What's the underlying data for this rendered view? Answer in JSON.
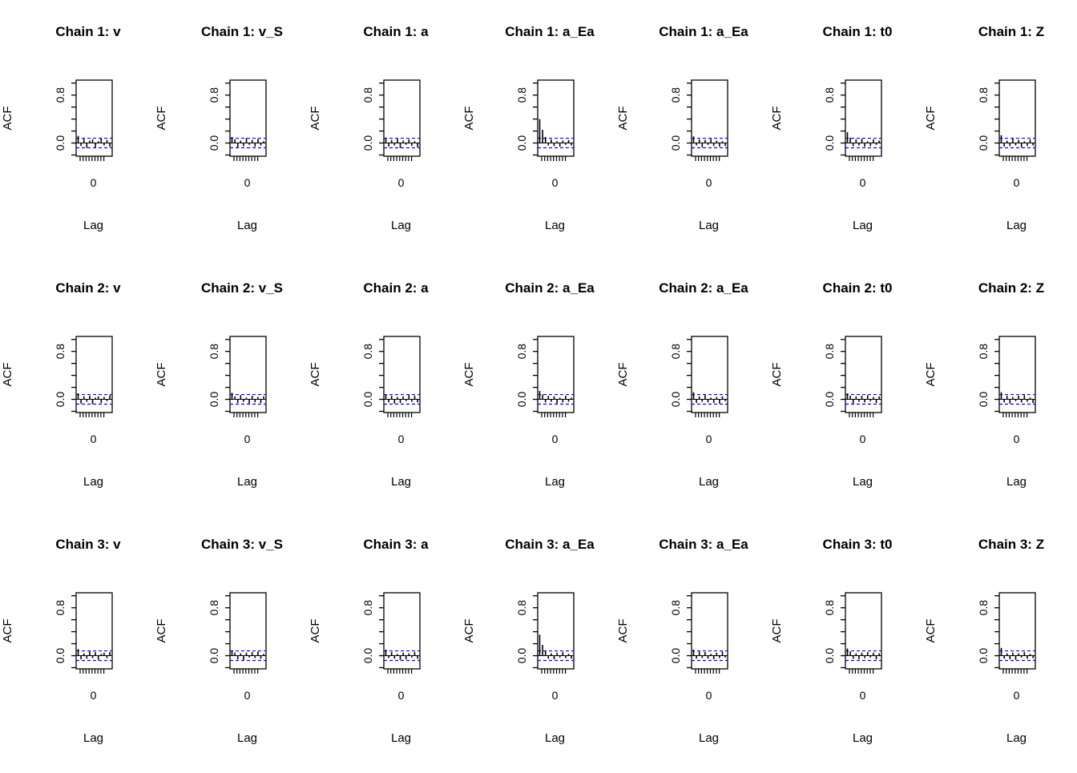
{
  "page": {
    "background": "#ffffff"
  },
  "chart_data": {
    "type": "bar",
    "variant": "acf-small-multiples-grid",
    "title": "",
    "xlabel": "Lag",
    "ylabel": "ACF",
    "x_tick_label": "0",
    "ylim": [
      -0.22,
      1.05
    ],
    "y_ticks": [
      -0.2,
      0.0,
      0.2,
      0.4,
      0.6,
      0.8,
      1.0
    ],
    "y_labeled_ticks": [
      {
        "value": 0.0,
        "label": "0.0"
      },
      {
        "value": 0.8,
        "label": "0.8"
      }
    ],
    "grid": "off",
    "legend": "none",
    "conf_bound": 0.08,
    "colors": {
      "bar": "#000000",
      "conf_line": "#0000ff",
      "axis": "#000000"
    },
    "chains": [
      "Chain 1",
      "Chain 2",
      "Chain 3"
    ],
    "params": [
      "v",
      "v_S",
      "a",
      "a_Ea",
      "a_Ea",
      "t0",
      "Z"
    ],
    "panels": [
      {
        "title": "Chain 1: v",
        "acf": [
          0.12,
          -0.05,
          0.07,
          -0.08,
          0.04,
          0.06,
          -0.07,
          0.03,
          0.08,
          -0.04,
          0.05,
          -0.06
        ]
      },
      {
        "title": "Chain 1: v_S",
        "acf": [
          0.1,
          0.06,
          -0.07,
          0.04,
          -0.05,
          0.08,
          -0.03,
          0.05,
          -0.06,
          0.07,
          -0.04,
          0.03
        ]
      },
      {
        "title": "Chain 1: a",
        "acf": [
          0.09,
          -0.06,
          0.05,
          -0.04,
          0.07,
          -0.08,
          0.04,
          -0.03,
          0.06,
          -0.05,
          0.03,
          -0.07
        ]
      },
      {
        "title": "Chain 1: a_Ea",
        "acf": [
          0.4,
          0.22,
          0.1,
          -0.04,
          0.06,
          -0.05,
          0.03,
          -0.06,
          0.04,
          -0.03,
          0.05,
          -0.04
        ]
      },
      {
        "title": "Chain 1: a_Ea",
        "acf": [
          0.11,
          -0.04,
          0.06,
          -0.07,
          0.05,
          -0.03,
          0.07,
          -0.05,
          0.04,
          -0.06,
          0.03,
          -0.05
        ]
      },
      {
        "title": "Chain 1: t0",
        "acf": [
          0.18,
          0.09,
          -0.05,
          0.06,
          -0.04,
          0.07,
          -0.06,
          0.03,
          -0.05,
          0.06,
          -0.03,
          0.04
        ]
      },
      {
        "title": "Chain 1: Z",
        "acf": [
          0.13,
          -0.06,
          0.04,
          -0.05,
          0.08,
          -0.04,
          0.05,
          -0.07,
          0.03,
          -0.05,
          0.06,
          -0.04
        ]
      },
      {
        "title": "Chain 2: v",
        "acf": [
          0.1,
          -0.07,
          0.05,
          -0.04,
          0.06,
          -0.08,
          0.03,
          0.05,
          -0.06,
          0.04,
          -0.03,
          0.07
        ]
      },
      {
        "title": "Chain 2: v_S",
        "acf": [
          0.11,
          0.05,
          -0.06,
          0.07,
          -0.04,
          0.03,
          -0.07,
          0.06,
          -0.05,
          0.04,
          -0.06,
          0.05
        ]
      },
      {
        "title": "Chain 2: a",
        "acf": [
          0.08,
          -0.05,
          0.06,
          -0.07,
          0.04,
          -0.06,
          0.05,
          -0.03,
          0.07,
          -0.04,
          0.06,
          -0.05
        ]
      },
      {
        "title": "Chain 2: a_Ea",
        "acf": [
          0.14,
          0.08,
          -0.05,
          0.06,
          -0.04,
          0.05,
          -0.07,
          0.03,
          -0.05,
          0.06,
          -0.04,
          0.03
        ]
      },
      {
        "title": "Chain 2: a_Ea",
        "acf": [
          0.12,
          -0.06,
          0.05,
          -0.04,
          0.07,
          -0.05,
          0.03,
          -0.06,
          0.04,
          -0.07,
          0.05,
          -0.03
        ]
      },
      {
        "title": "Chain 2: t0",
        "acf": [
          0.1,
          0.06,
          -0.07,
          0.05,
          -0.04,
          0.06,
          -0.05,
          0.07,
          -0.03,
          0.04,
          -0.06,
          0.05
        ]
      },
      {
        "title": "Chain 2: Z",
        "acf": [
          0.12,
          -0.05,
          0.06,
          -0.07,
          0.04,
          -0.03,
          0.06,
          -0.05,
          0.07,
          -0.04,
          0.03,
          -0.06
        ]
      },
      {
        "title": "Chain 3: v",
        "acf": [
          0.11,
          -0.06,
          0.04,
          -0.05,
          0.07,
          -0.04,
          0.06,
          -0.07,
          0.03,
          0.05,
          -0.04,
          0.06
        ]
      },
      {
        "title": "Chain 3: v_S",
        "acf": [
          0.09,
          0.05,
          -0.06,
          0.04,
          -0.07,
          0.05,
          -0.03,
          0.06,
          -0.04,
          0.07,
          -0.05,
          0.03
        ]
      },
      {
        "title": "Chain 3: a",
        "acf": [
          0.1,
          -0.04,
          0.06,
          -0.05,
          0.03,
          -0.07,
          0.05,
          -0.06,
          0.04,
          -0.03,
          0.06,
          -0.05
        ]
      },
      {
        "title": "Chain 3: a_Ea",
        "acf": [
          0.35,
          0.18,
          0.08,
          -0.05,
          0.04,
          -0.06,
          0.05,
          -0.03,
          0.06,
          -0.04,
          0.03,
          -0.05
        ]
      },
      {
        "title": "Chain 3: a_Ea",
        "acf": [
          0.1,
          -0.05,
          0.07,
          -0.04,
          0.06,
          -0.05,
          0.03,
          -0.06,
          0.05,
          -0.04,
          0.07,
          -0.03
        ]
      },
      {
        "title": "Chain 3: t0",
        "acf": [
          0.12,
          0.07,
          -0.05,
          0.04,
          -0.06,
          0.05,
          -0.04,
          0.06,
          -0.03,
          0.05,
          -0.06,
          0.04
        ]
      },
      {
        "title": "Chain 3: Z",
        "acf": [
          0.13,
          -0.05,
          0.04,
          -0.06,
          0.05,
          -0.07,
          0.04,
          -0.03,
          0.06,
          -0.05,
          0.03,
          -0.04
        ]
      }
    ]
  }
}
